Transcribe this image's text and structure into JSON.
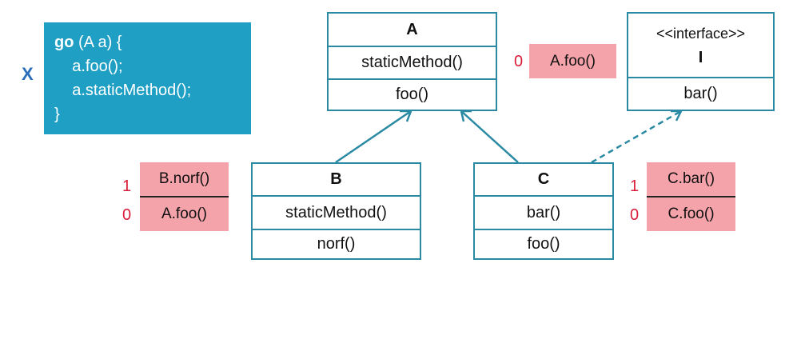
{
  "marker": "X",
  "code": {
    "keyword": "go",
    "signature": " (A a) {",
    "line2": "    a.foo();",
    "line3": "    a.staticMethod();",
    "line4": "}"
  },
  "classA": {
    "name": "A",
    "method1": "staticMethod()",
    "method2": "foo()"
  },
  "classI": {
    "stereotype": "<<interface>>",
    "name": "I",
    "method1": "bar()"
  },
  "classB": {
    "name": "B",
    "method1": "staticMethod()",
    "method2": "norf()"
  },
  "classC": {
    "name": "C",
    "method1": "bar()",
    "method2": "foo()"
  },
  "tableA": {
    "num": "0",
    "label": "A.foo()"
  },
  "tableB": {
    "num1": "1",
    "label1": "B.norf()",
    "num2": "0",
    "label2": "A.foo()"
  },
  "tableC": {
    "num1": "1",
    "label1": "C.bar()",
    "num2": "0",
    "label2": "C.foo()"
  },
  "colors": {
    "code_bg": "#1f9fc4",
    "border": "#2b8aa3",
    "pill": "#f4a3aa",
    "num": "#d81e3a",
    "marker": "#2a6ebb"
  }
}
